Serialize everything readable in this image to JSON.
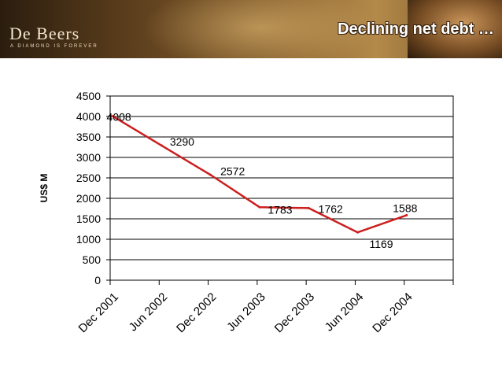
{
  "header": {
    "logo_text": "De Beers",
    "tagline": "A DIAMOND IS FOREVER",
    "title": "Declining net debt …"
  },
  "chart_data": {
    "type": "line",
    "categories": [
      "Dec 2001",
      "Jun 2002",
      "Dec 2002",
      "Jun 2003",
      "Dec 2003",
      "Jun 2004",
      "Dec 2004"
    ],
    "series": [
      {
        "values": [
          4008,
          3290,
          2572,
          1783,
          1762,
          1169,
          1588
        ]
      }
    ],
    "data_labels": [
      "4008",
      "3290",
      "2572",
      "1783",
      "1762",
      "1169",
      "1588"
    ],
    "ylabel": "US$ M",
    "xlabel": "",
    "ylim": [
      0,
      4500
    ],
    "yticks": [
      0,
      500,
      1000,
      1500,
      2000,
      2500,
      3000,
      3500,
      4000,
      4500
    ],
    "grid": true,
    "legend": "none",
    "line_color": "#cc1f1f"
  }
}
